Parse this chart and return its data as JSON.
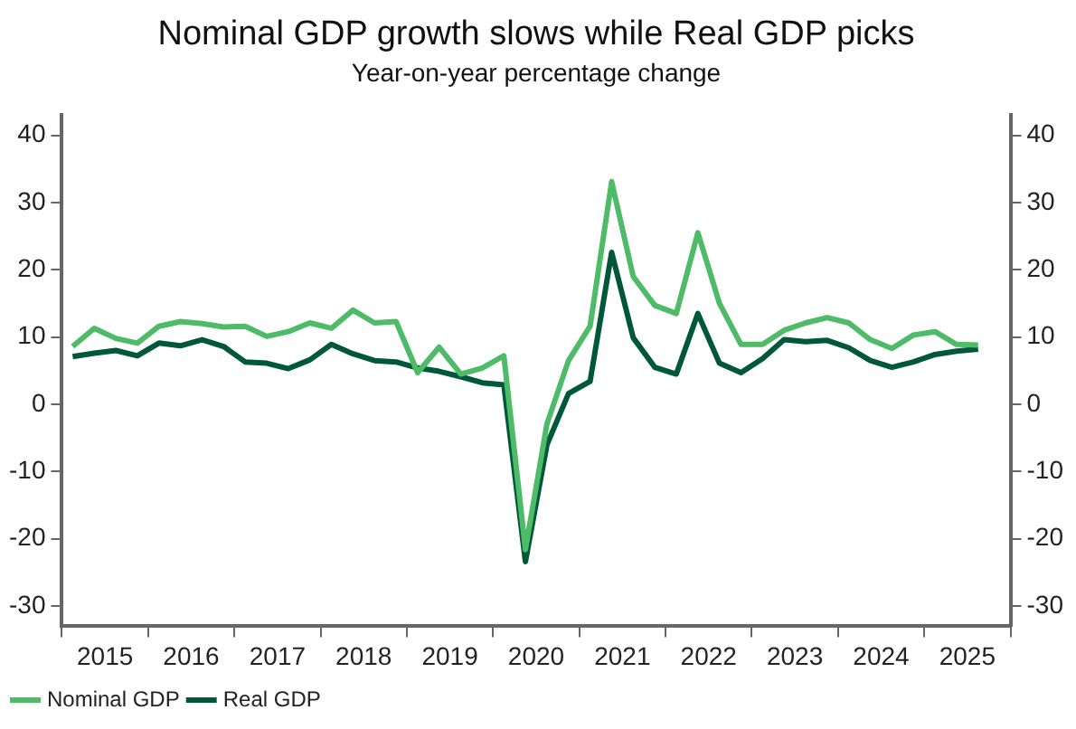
{
  "chart_data": {
    "type": "line",
    "title": "Nominal GDP growth slows while Real GDP picks",
    "subtitle": "Year-on-year percentage change",
    "x": [
      2015.125,
      2015.375,
      2015.625,
      2015.875,
      2016.125,
      2016.375,
      2016.625,
      2016.875,
      2017.125,
      2017.375,
      2017.625,
      2017.875,
      2018.125,
      2018.375,
      2018.625,
      2018.875,
      2019.125,
      2019.375,
      2019.625,
      2019.875,
      2020.125,
      2020.375,
      2020.625,
      2020.875,
      2021.125,
      2021.375,
      2021.625,
      2021.875,
      2022.125,
      2022.375,
      2022.625,
      2022.875,
      2023.125,
      2023.375,
      2023.625,
      2023.875,
      2024.125,
      2024.375,
      2024.625,
      2024.875,
      2025.125,
      2025.375,
      2025.625
    ],
    "series": [
      {
        "name": "Nominal GDP",
        "color": "#4dbb68",
        "values": [
          8.6,
          11.3,
          9.8,
          9.1,
          11.6,
          12.3,
          12.0,
          11.5,
          11.6,
          10.1,
          10.8,
          12.1,
          11.3,
          14.0,
          12.1,
          12.3,
          4.7,
          8.5,
          4.5,
          5.4,
          7.2,
          -21.6,
          -2.9,
          6.5,
          11.6,
          33.1,
          19.0,
          14.7,
          13.5,
          25.5,
          15.0,
          8.9,
          8.9,
          11.0,
          12.1,
          12.9,
          12.1,
          9.6,
          8.3,
          10.3,
          10.8,
          8.9,
          8.8
        ]
      },
      {
        "name": "Real GDP",
        "color": "#00573a",
        "values": [
          7.1,
          7.6,
          8.0,
          7.2,
          9.1,
          8.7,
          9.6,
          8.6,
          6.3,
          6.1,
          5.3,
          6.6,
          8.9,
          7.5,
          6.5,
          6.3,
          5.4,
          4.9,
          4.1,
          3.2,
          2.9,
          -23.4,
          -6.0,
          1.6,
          3.4,
          22.6,
          9.9,
          5.5,
          4.5,
          13.5,
          6.1,
          4.7,
          6.8,
          9.6,
          9.3,
          9.5,
          8.4,
          6.5,
          5.5,
          6.3,
          7.4,
          7.9,
          8.2
        ]
      }
    ],
    "xlim": [
      2015,
      2026
    ],
    "xticks": [
      {
        "value": 2015,
        "label": null
      },
      {
        "value": 2015.5,
        "label": "2015"
      },
      {
        "value": 2016,
        "label": null
      },
      {
        "value": 2016.5,
        "label": "2016"
      },
      {
        "value": 2017,
        "label": null
      },
      {
        "value": 2017.5,
        "label": "2017"
      },
      {
        "value": 2018,
        "label": null
      },
      {
        "value": 2018.5,
        "label": "2018"
      },
      {
        "value": 2019,
        "label": null
      },
      {
        "value": 2019.5,
        "label": "2019"
      },
      {
        "value": 2020,
        "label": null
      },
      {
        "value": 2020.5,
        "label": "2020"
      },
      {
        "value": 2021,
        "label": null
      },
      {
        "value": 2021.5,
        "label": "2021"
      },
      {
        "value": 2022,
        "label": null
      },
      {
        "value": 2022.5,
        "label": "2022"
      },
      {
        "value": 2023,
        "label": null
      },
      {
        "value": 2023.5,
        "label": "2023"
      },
      {
        "value": 2024,
        "label": null
      },
      {
        "value": 2024.5,
        "label": "2024"
      },
      {
        "value": 2025,
        "label": null
      },
      {
        "value": 2025.5,
        "label": "2025"
      },
      {
        "value": 2026,
        "label": null
      }
    ],
    "ylim": [
      -33,
      43
    ],
    "yticks": [
      -30,
      -20,
      -10,
      0,
      10,
      20,
      30,
      40
    ],
    "y2lim": [
      -33,
      43
    ],
    "y2ticks": [
      -30,
      -20,
      -10,
      0,
      10,
      20,
      30,
      40
    ],
    "grid": false,
    "legend": "bottom left",
    "marker": "none",
    "line_style": "solid"
  }
}
